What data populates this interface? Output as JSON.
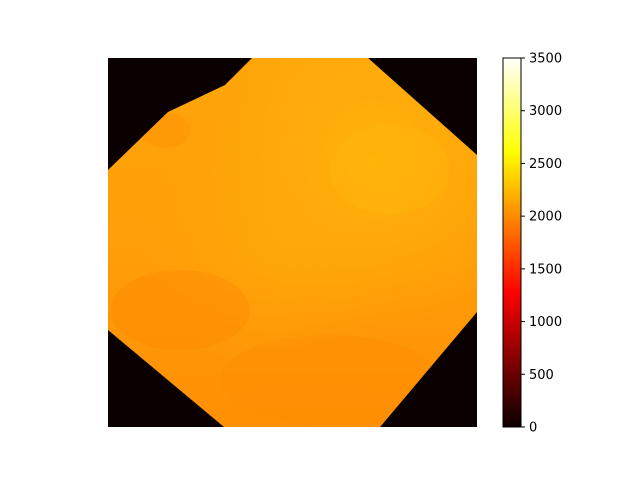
{
  "chart_data": {
    "type": "heatmap",
    "title": "",
    "xlabel": "",
    "ylabel": "",
    "axes_visible": false,
    "colormap": "hot",
    "colorbar": {
      "vmin": 0,
      "vmax": 3500,
      "placement": "right",
      "ticks": [
        0,
        500,
        1000,
        1500,
        2000,
        2500,
        3000,
        3500
      ],
      "tick_labels": [
        "0",
        "500",
        "1000",
        "1500",
        "2000",
        "2500",
        "3000",
        "3500"
      ]
    },
    "background_value": 0,
    "interior_value_range": [
      1850,
      2300
    ],
    "region_description_values": {
      "upper_right_mean": 2250,
      "center_mean": 2120,
      "lower_left_mean": 1980,
      "bottom_mean": 1950
    },
    "colors": {
      "outside_region": "#0b0000",
      "region_low": "#ff8c00",
      "region_high": "#ffb400"
    }
  }
}
